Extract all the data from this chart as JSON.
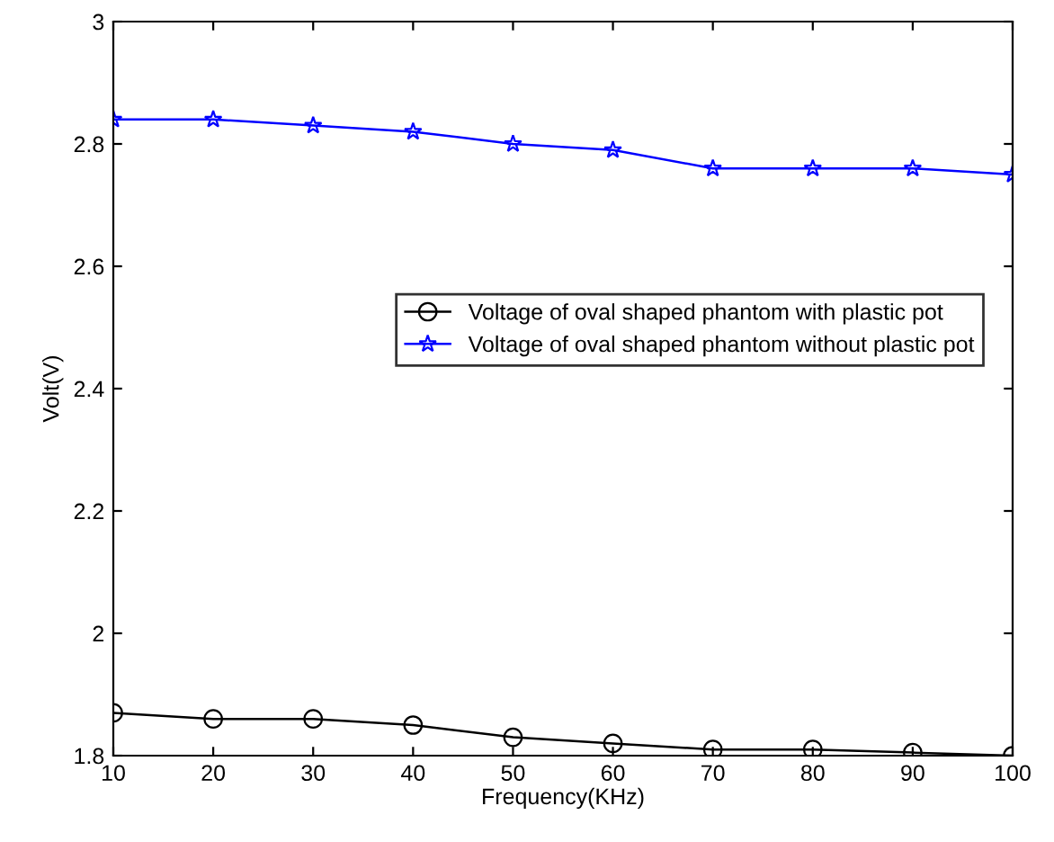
{
  "chart_data": {
    "type": "line",
    "xlabel": "Frequency(KHz)",
    "ylabel": "Volt(V)",
    "x": [
      10,
      20,
      30,
      40,
      50,
      60,
      70,
      80,
      90,
      100
    ],
    "series": [
      {
        "name": "Voltage of oval shaped phantom with plastic pot",
        "color": "#000000",
        "marker": "circle",
        "values": [
          1.87,
          1.86,
          1.86,
          1.85,
          1.83,
          1.82,
          1.81,
          1.81,
          1.805,
          1.8
        ]
      },
      {
        "name": "Voltage of oval shaped phantom without plastic pot",
        "color": "#0000ff",
        "marker": "star",
        "values": [
          2.84,
          2.84,
          2.83,
          2.82,
          2.8,
          2.79,
          2.76,
          2.76,
          2.76,
          2.75
        ]
      }
    ],
    "xlim": [
      10,
      100
    ],
    "xticks": [
      10,
      20,
      30,
      40,
      50,
      60,
      70,
      80,
      90,
      100
    ],
    "ylim": [
      1.8,
      3
    ],
    "yticks": [
      1.8,
      2,
      2.2,
      2.4,
      2.6,
      2.8,
      3
    ],
    "grid": false,
    "legend": "right",
    "line_style": "solid"
  }
}
